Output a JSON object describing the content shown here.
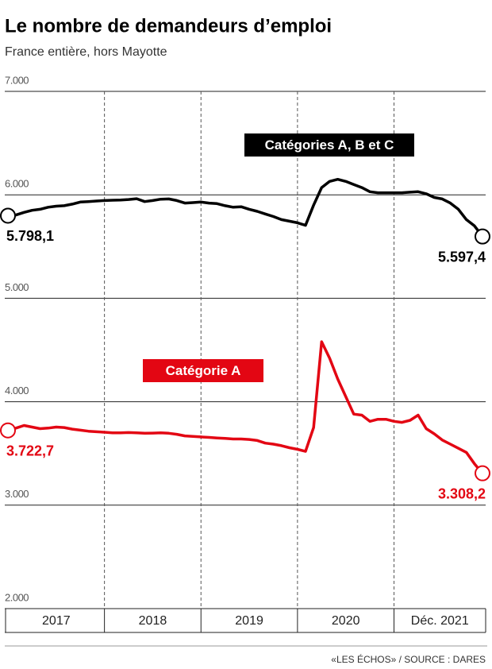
{
  "chart_data": {
    "type": "line",
    "title": "Le nombre de demandeurs d’emploi",
    "subtitle": "France entière, hors Mayotte",
    "source": "«LES ÉCHOS» / SOURCE : DARES",
    "x_labels": [
      "2017",
      "2018",
      "2019",
      "2020",
      "Déc. 2021"
    ],
    "ylim": [
      2000,
      7000
    ],
    "yticks": [
      {
        "value": 7000,
        "label": "7.000"
      },
      {
        "value": 6000,
        "label": "6.000"
      },
      {
        "value": 5000,
        "label": "5.000"
      },
      {
        "value": 4000,
        "label": "4.000"
      },
      {
        "value": 3000,
        "label": "3.000"
      },
      {
        "value": 2000,
        "label": "2.000"
      }
    ],
    "grid": true,
    "series": [
      {
        "name": "Catégories A, B et C",
        "color": "#000000",
        "values": [
          5798.1,
          5805,
          5830,
          5850,
          5860,
          5880,
          5890,
          5895,
          5910,
          5930,
          5935,
          5940,
          5945,
          5948,
          5950,
          5955,
          5962,
          5935,
          5945,
          5958,
          5960,
          5945,
          5920,
          5925,
          5930,
          5920,
          5915,
          5895,
          5880,
          5885,
          5860,
          5840,
          5815,
          5790,
          5760,
          5745,
          5730,
          5705,
          5900,
          6070,
          6130,
          6150,
          6130,
          6100,
          6070,
          6030,
          6020,
          6020,
          6020,
          6020,
          6025,
          6030,
          6010,
          5975,
          5960,
          5920,
          5860,
          5760,
          5700,
          5597.4
        ],
        "value_labels": [
          "5.798,1",
          null,
          null,
          null,
          null,
          null,
          null,
          null,
          null,
          null,
          null,
          null,
          null,
          null,
          null,
          null,
          null,
          null,
          null,
          null,
          null,
          null,
          null,
          null,
          null,
          null,
          null,
          null,
          null,
          null,
          null,
          null,
          null,
          null,
          null,
          null,
          null,
          null,
          null,
          null,
          null,
          null,
          null,
          null,
          null,
          null,
          null,
          null,
          null,
          null,
          null,
          null,
          null,
          null,
          null,
          null,
          null,
          null,
          null,
          "5.597,4"
        ]
      },
      {
        "name": "Catégorie A",
        "color": "#e30613",
        "values": [
          3722.7,
          3745,
          3770,
          3755,
          3740,
          3745,
          3755,
          3750,
          3735,
          3725,
          3715,
          3710,
          3705,
          3700,
          3700,
          3702,
          3700,
          3695,
          3697,
          3700,
          3695,
          3685,
          3670,
          3665,
          3660,
          3655,
          3650,
          3645,
          3640,
          3640,
          3635,
          3625,
          3600,
          3590,
          3575,
          3555,
          3540,
          3520,
          3750,
          4580,
          4420,
          4220,
          4050,
          3880,
          3870,
          3810,
          3830,
          3830,
          3810,
          3800,
          3820,
          3870,
          3740,
          3690,
          3630,
          3590,
          3550,
          3510,
          3400,
          3308.2
        ],
        "value_labels": [
          "3.722,7",
          null,
          null,
          null,
          null,
          null,
          null,
          null,
          null,
          null,
          null,
          null,
          null,
          null,
          null,
          null,
          null,
          null,
          null,
          null,
          null,
          null,
          null,
          null,
          null,
          null,
          null,
          null,
          null,
          null,
          null,
          null,
          null,
          null,
          null,
          null,
          null,
          null,
          null,
          null,
          null,
          null,
          null,
          null,
          null,
          null,
          null,
          null,
          null,
          null,
          null,
          null,
          null,
          null,
          null,
          null,
          null,
          null,
          null,
          "3.308,2"
        ]
      }
    ]
  }
}
